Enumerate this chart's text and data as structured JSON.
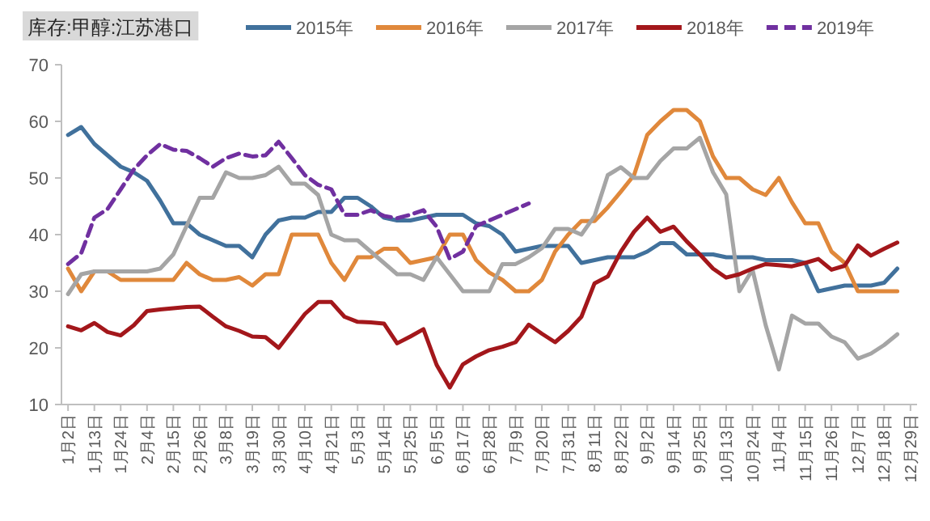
{
  "chart_data": {
    "type": "line",
    "title": "库存:甲醇:江苏港口",
    "categories": [
      "1月2日",
      null,
      "1月13日",
      null,
      "1月24日",
      null,
      "2月4日",
      null,
      "2月15日",
      null,
      "2月26日",
      null,
      "3月8日",
      null,
      "3月19日",
      null,
      "3月30日",
      null,
      "4月10日",
      null,
      "4月21日",
      null,
      "5月3日",
      null,
      "5月14日",
      null,
      "5月25日",
      null,
      "6月5日",
      null,
      "6月17日",
      null,
      "6月28日",
      null,
      "7月9日",
      null,
      "7月20日",
      null,
      "7月31日",
      null,
      "8月11日",
      null,
      "8月22日",
      null,
      "9月2日",
      null,
      "9月14日",
      null,
      "9月25日",
      null,
      "10月13日",
      null,
      "10月24日",
      null,
      "11月4日",
      null,
      "11月15日",
      null,
      "11月26日",
      null,
      "12月7日",
      null,
      "12月18日",
      null,
      "12月29日"
    ],
    "series": [
      {
        "name": "2015年",
        "color": "#41719c",
        "values": [
          57.6,
          59,
          56,
          54,
          52,
          51,
          49.5,
          46,
          42,
          42,
          40,
          39,
          38,
          38,
          36,
          40,
          42.5,
          43,
          43,
          44,
          44,
          46.5,
          46.5,
          45,
          43,
          42.5,
          42.5,
          43,
          43.5,
          43.5,
          43.5,
          42,
          41.5,
          40,
          37,
          37.5,
          38,
          38,
          38,
          35,
          35.5,
          36,
          36,
          36,
          37,
          38.5,
          38.5,
          36.5,
          36.5,
          36.5,
          36,
          36,
          36,
          35.5,
          35.5,
          35.5,
          35,
          30,
          30.5,
          31,
          31,
          31,
          31.5,
          34,
          null
        ]
      },
      {
        "name": "2016年",
        "color": "#e0883b",
        "values": [
          34,
          30,
          33.5,
          33.5,
          32,
          32,
          32,
          32,
          32,
          35,
          33,
          32,
          32,
          32.5,
          31,
          33,
          33,
          40,
          40,
          40,
          35,
          32,
          36,
          36,
          37.5,
          37.5,
          35,
          35.5,
          36,
          40,
          40,
          35.5,
          33.3,
          32,
          30,
          30,
          32,
          37,
          40,
          42.4,
          42.4,
          44.8,
          47.6,
          50.5,
          57.6,
          60,
          62,
          62,
          60,
          53.8,
          50,
          50,
          48,
          47,
          50,
          45.7,
          42,
          42,
          37,
          35,
          30,
          30,
          30,
          30,
          null
        ]
      },
      {
        "name": "2017年",
        "color": "#a5a5a5",
        "values": [
          29.5,
          33,
          33.5,
          33.5,
          33.5,
          33.5,
          33.5,
          34,
          36.5,
          41.5,
          46.5,
          46.5,
          51,
          50,
          50,
          50.5,
          52,
          49,
          49,
          47,
          40,
          39,
          39,
          37,
          35,
          33,
          33,
          32,
          36,
          33,
          30,
          30,
          30,
          34.8,
          34.8,
          36,
          37.6,
          41,
          41,
          40,
          43.3,
          50.5,
          51.9,
          50,
          50,
          53,
          55.2,
          55.2,
          57.1,
          51,
          47.1,
          30,
          33.8,
          24,
          16.2,
          25.7,
          24.3,
          24.3,
          22,
          21,
          18.1,
          19,
          20.5,
          22.4,
          null
        ]
      },
      {
        "name": "2018年",
        "color": "#a3171b",
        "values": [
          23.8,
          23.1,
          24.4,
          22.8,
          22.2,
          24,
          26.5,
          26.8,
          27,
          27.2,
          27.3,
          25.5,
          23.8,
          23,
          22,
          21.9,
          20,
          23,
          26,
          28.1,
          28.1,
          25.5,
          24.6,
          24.5,
          24.3,
          20.8,
          22,
          23.3,
          17,
          13,
          17.1,
          18.5,
          19.6,
          20.2,
          21,
          24.1,
          22.5,
          21,
          23,
          25.5,
          31.4,
          32.6,
          37,
          40.5,
          43,
          40.5,
          41.4,
          38.8,
          36.5,
          34,
          32.4,
          33,
          34,
          34.8,
          34.6,
          34.4,
          35,
          35.7,
          33.8,
          34.5,
          38.1,
          36.3,
          37.5,
          38.6,
          null
        ]
      },
      {
        "name": "2019年",
        "color": "#7030a0",
        "line_style": "dashed",
        "values": [
          34.8,
          36.7,
          43,
          44.5,
          48,
          51.5,
          54,
          56,
          55,
          54.8,
          53.5,
          52,
          53.5,
          54.3,
          53.8,
          54,
          56.4,
          53.5,
          50.5,
          48.8,
          48,
          43.5,
          43.5,
          44.3,
          43.3,
          42.9,
          43.5,
          44.3,
          41.4,
          35.7,
          37,
          41.5,
          42.5,
          43.5,
          44.5,
          45.5,
          null,
          null,
          null,
          null,
          null,
          null,
          null,
          null,
          null,
          null,
          null,
          null,
          null,
          null,
          null,
          null,
          null,
          null,
          null,
          null,
          null,
          null,
          null,
          null,
          null,
          null,
          null,
          null,
          null
        ]
      }
    ],
    "ylim": [
      10,
      70
    ],
    "yticks": [
      10,
      20,
      30,
      40,
      50,
      60,
      70
    ],
    "grid": false,
    "legend": "top"
  }
}
